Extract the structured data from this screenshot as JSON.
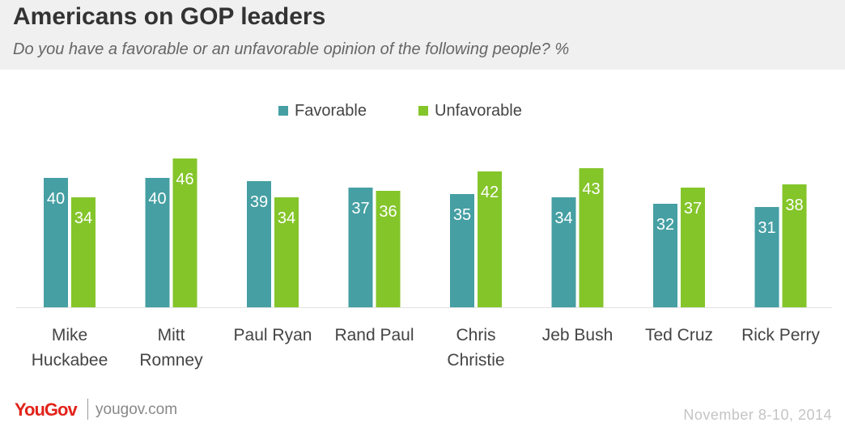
{
  "header": {
    "title": "Americans on GOP leaders",
    "subtitle": "Do you have a favorable or an unfavorable opinion of the following people? %"
  },
  "footer": {
    "logo": "YouGov",
    "url": "yougov.com",
    "date": "November 8-10, 2014"
  },
  "colors": {
    "favorable": "#459fa3",
    "unfavorable": "#84c52a"
  },
  "chart_data": {
    "type": "bar",
    "categories": [
      [
        "Mike",
        "Huckabee"
      ],
      [
        "Mitt",
        "Romney"
      ],
      [
        "Paul Ryan"
      ],
      [
        "Rand Paul"
      ],
      [
        "Chris",
        "Christie"
      ],
      [
        "Jeb Bush"
      ],
      [
        "Ted Cruz"
      ],
      [
        "Rick Perry"
      ]
    ],
    "series": [
      {
        "name": "Favorable",
        "values": [
          40,
          40,
          39,
          37,
          35,
          34,
          32,
          31
        ]
      },
      {
        "name": "Unfavorable",
        "values": [
          34,
          46,
          34,
          36,
          42,
          43,
          37,
          38
        ]
      }
    ],
    "ylim": [
      0,
      46
    ],
    "legend": "top-center",
    "grid": false
  }
}
